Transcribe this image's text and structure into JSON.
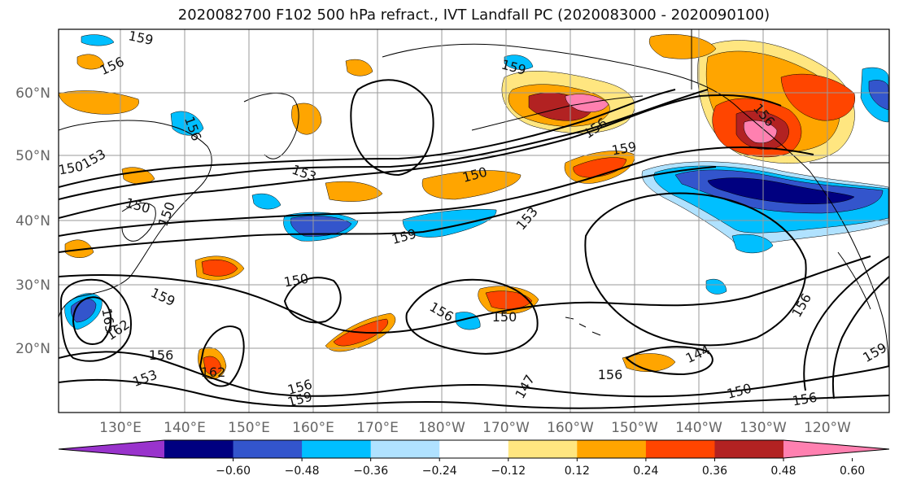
{
  "title": "2020082700 F102 500 hPa refract., IVT Landfall PC (2020083000 - 2020090100)",
  "map": {
    "lat_ticks": [
      "60°N",
      "50°N",
      "40°N",
      "30°N",
      "20°N"
    ],
    "lon_ticks": [
      "130°E",
      "140°E",
      "150°E",
      "160°E",
      "170°E",
      "180°W",
      "170°W",
      "160°W",
      "150°W",
      "140°W",
      "130°W",
      "120°W"
    ],
    "contour_labels": [
      "159",
      "156",
      "156",
      "153",
      "150",
      "150",
      "150",
      "153",
      "159",
      "150",
      "150",
      "153",
      "159",
      "156",
      "159",
      "156",
      "150",
      "159",
      "162",
      "165",
      "156",
      "162",
      "153",
      "156",
      "159",
      "147",
      "156",
      "144",
      "156",
      "150",
      "156",
      "159",
      "156"
    ]
  },
  "colorbar": {
    "tick_labels": [
      "−0.60",
      "−0.48",
      "−0.36",
      "−0.24",
      "−0.12",
      "0.12",
      "0.24",
      "0.36",
      "0.48",
      "0.60"
    ],
    "colors": [
      "#9933cc",
      "#000080",
      "#3355cc",
      "#00bfff",
      "#b0e2ff",
      "#ffffff",
      "#ffe680",
      "#ffa500",
      "#ff4500",
      "#b22222",
      "#ff80b0"
    ]
  },
  "fills": {
    "pos1": "#ffe680",
    "pos2": "#ffa500",
    "pos3": "#ff4500",
    "pos4": "#b22222",
    "pos5": "#ff80b0",
    "neg1": "#b0e2ff",
    "neg2": "#00bfff",
    "neg3": "#3355cc",
    "neg4": "#000080"
  }
}
